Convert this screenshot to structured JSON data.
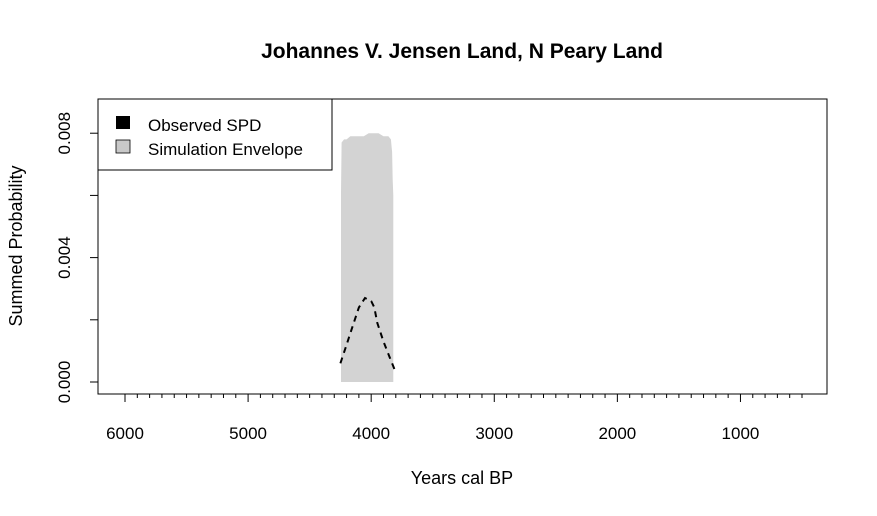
{
  "chart_data": {
    "type": "area",
    "title": "Johannes V. Jensen Land, N Peary Land",
    "xlabel": "Years cal BP",
    "ylabel": "Summed Probability",
    "x_reversed": true,
    "xlim": [
      6000,
      500
    ],
    "ylim": [
      0,
      0.0091
    ],
    "x_ticks": [
      6000,
      5000,
      4000,
      3000,
      2000,
      1000
    ],
    "x_tick_labels": [
      "6000",
      "5000",
      "4000",
      "3000",
      "2000",
      "1000"
    ],
    "x_minor_step": 100,
    "y_ticks": [
      0.0,
      0.002,
      0.004,
      0.006,
      0.008
    ],
    "y_tick_labels": [
      "0.000",
      "",
      "0.004",
      "",
      "0.008"
    ],
    "grid": false,
    "legend": {
      "placement": "top-left",
      "entries": [
        {
          "label": "Observed SPD",
          "color": "#000000"
        },
        {
          "label": "Simulation Envelope",
          "color": "#c8c8c8"
        }
      ]
    },
    "series": [
      {
        "name": "Simulation Envelope",
        "color": "#d3d3d3",
        "x": [
          4245,
          4240,
          4220,
          4200,
          4170,
          4140,
          4100,
          4060,
          4020,
          3980,
          3940,
          3900,
          3860,
          3840,
          3830,
          3825,
          3820
        ],
        "lower": [
          0,
          0,
          0,
          0,
          0,
          0,
          0,
          0,
          0,
          0,
          0,
          0,
          0,
          0,
          0,
          0,
          0
        ],
        "upper": [
          0.0061,
          0.0077,
          0.0078,
          0.0078,
          0.0079,
          0.0079,
          0.0079,
          0.0079,
          0.008,
          0.008,
          0.008,
          0.0079,
          0.0079,
          0.0078,
          0.0074,
          0.0065,
          0.006
        ]
      },
      {
        "name": "Observed SPD",
        "color": "#000000",
        "style": "dashed",
        "x": [
          4250,
          4200,
          4150,
          4100,
          4050,
          4000,
          3975,
          3950,
          3900,
          3850,
          3810
        ],
        "values": [
          0.0006,
          0.0012,
          0.0018,
          0.0024,
          0.0027,
          0.0026,
          0.0024,
          0.0019,
          0.0013,
          0.0008,
          0.0004
        ]
      }
    ]
  }
}
